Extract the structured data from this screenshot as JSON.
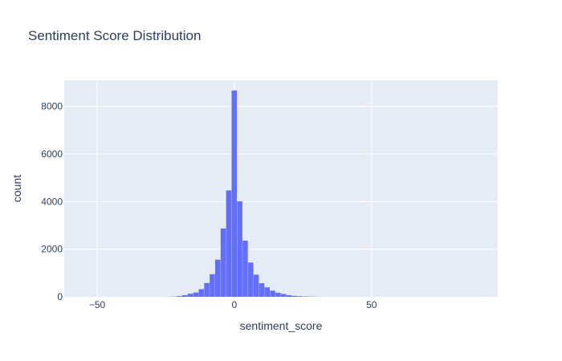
{
  "chart_data": {
    "type": "bar",
    "title": "Sentiment Score Distribution",
    "xlabel": "sentiment_score",
    "ylabel": "count",
    "xlim": [
      -62,
      96
    ],
    "ylim": [
      0,
      9100
    ],
    "x_ticks": [
      -50,
      0,
      50
    ],
    "y_ticks": [
      0,
      2000,
      4000,
      6000,
      8000
    ],
    "grid": true,
    "bin_width": 2,
    "bars": [
      {
        "x0": -25,
        "value": 5
      },
      {
        "x0": -23,
        "value": 10
      },
      {
        "x0": -21,
        "value": 30
      },
      {
        "x0": -19,
        "value": 70
      },
      {
        "x0": -17,
        "value": 130
      },
      {
        "x0": -15,
        "value": 180
      },
      {
        "x0": -13,
        "value": 320
      },
      {
        "x0": -11,
        "value": 580
      },
      {
        "x0": -9,
        "value": 950
      },
      {
        "x0": -7,
        "value": 1560
      },
      {
        "x0": -5,
        "value": 2870
      },
      {
        "x0": -3,
        "value": 4470
      },
      {
        "x0": -1,
        "value": 8670
      },
      {
        "x0": 1,
        "value": 4010
      },
      {
        "x0": 3,
        "value": 2360
      },
      {
        "x0": 5,
        "value": 1440
      },
      {
        "x0": 7,
        "value": 930
      },
      {
        "x0": 9,
        "value": 570
      },
      {
        "x0": 11,
        "value": 400
      },
      {
        "x0": 13,
        "value": 260
      },
      {
        "x0": 15,
        "value": 170
      },
      {
        "x0": 17,
        "value": 120
      },
      {
        "x0": 19,
        "value": 70
      },
      {
        "x0": 21,
        "value": 40
      },
      {
        "x0": 23,
        "value": 25
      },
      {
        "x0": 25,
        "value": 15
      },
      {
        "x0": 27,
        "value": 10
      },
      {
        "x0": 29,
        "value": 5
      }
    ],
    "colors": {
      "bar": "#636efa",
      "plot_bg": "#e5ecf6",
      "grid": "#ffffff",
      "text": "#2a3f5f"
    }
  }
}
